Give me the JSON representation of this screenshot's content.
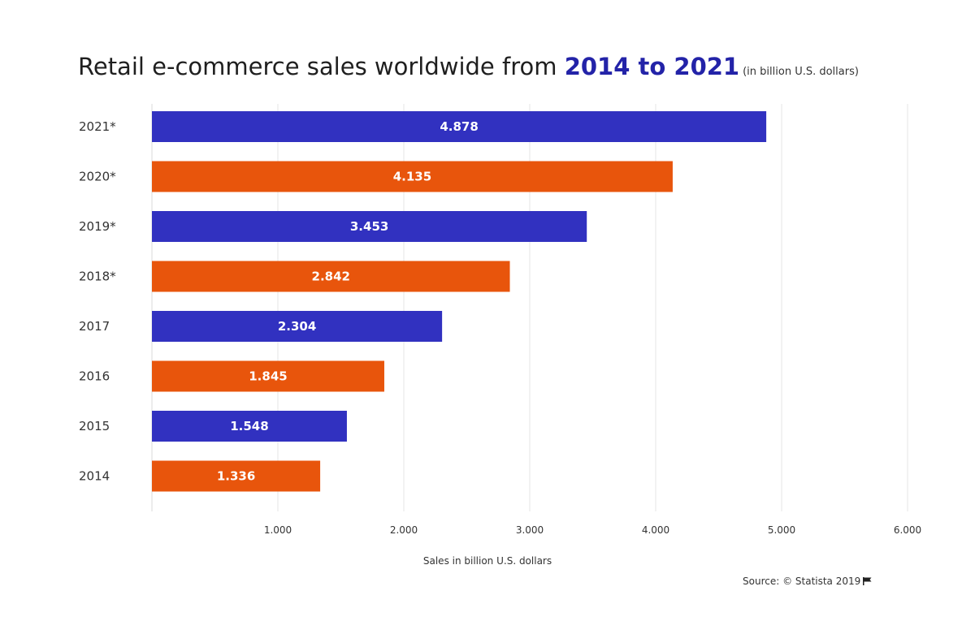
{
  "title": {
    "prefix": "Retail e-commerce sales worldwide from",
    "highlight": "2014 to 2021",
    "unit": "(in billion U.S. dollars)"
  },
  "colors": {
    "blue": "#3131c0",
    "orange": "#e8550c",
    "highlight": "#2323a8",
    "grid": "#e6e6e6"
  },
  "chart_data": {
    "type": "bar",
    "orientation": "horizontal",
    "title": "Retail e-commerce sales worldwide from 2014 to 2021 (in billion U.S. dollars)",
    "categories": [
      "2021*",
      "2020*",
      "2019*",
      "2018*",
      "2017",
      "2016",
      "2015",
      "2014"
    ],
    "values": [
      4.878,
      4.135,
      3.453,
      2.842,
      2.304,
      1.845,
      1.548,
      1.336
    ],
    "value_labels": [
      "4.878",
      "4.135",
      "3.453",
      "2.842",
      "2.304",
      "1.845",
      "1.548",
      "1.336"
    ],
    "bar_colors": [
      "blue",
      "orange",
      "blue",
      "orange",
      "blue",
      "orange",
      "blue",
      "orange"
    ],
    "xlabel": "Sales in billion U.S. dollars",
    "ylabel": "",
    "xlim": [
      0,
      6
    ],
    "xticks": [
      1,
      2,
      3,
      4,
      5,
      6
    ],
    "xtick_labels": [
      "1.000",
      "2.000",
      "3.000",
      "4.000",
      "5.000",
      "6.000"
    ],
    "grid": true,
    "legend": "none"
  },
  "footer": {
    "source": "Source: © Statista 2019"
  }
}
